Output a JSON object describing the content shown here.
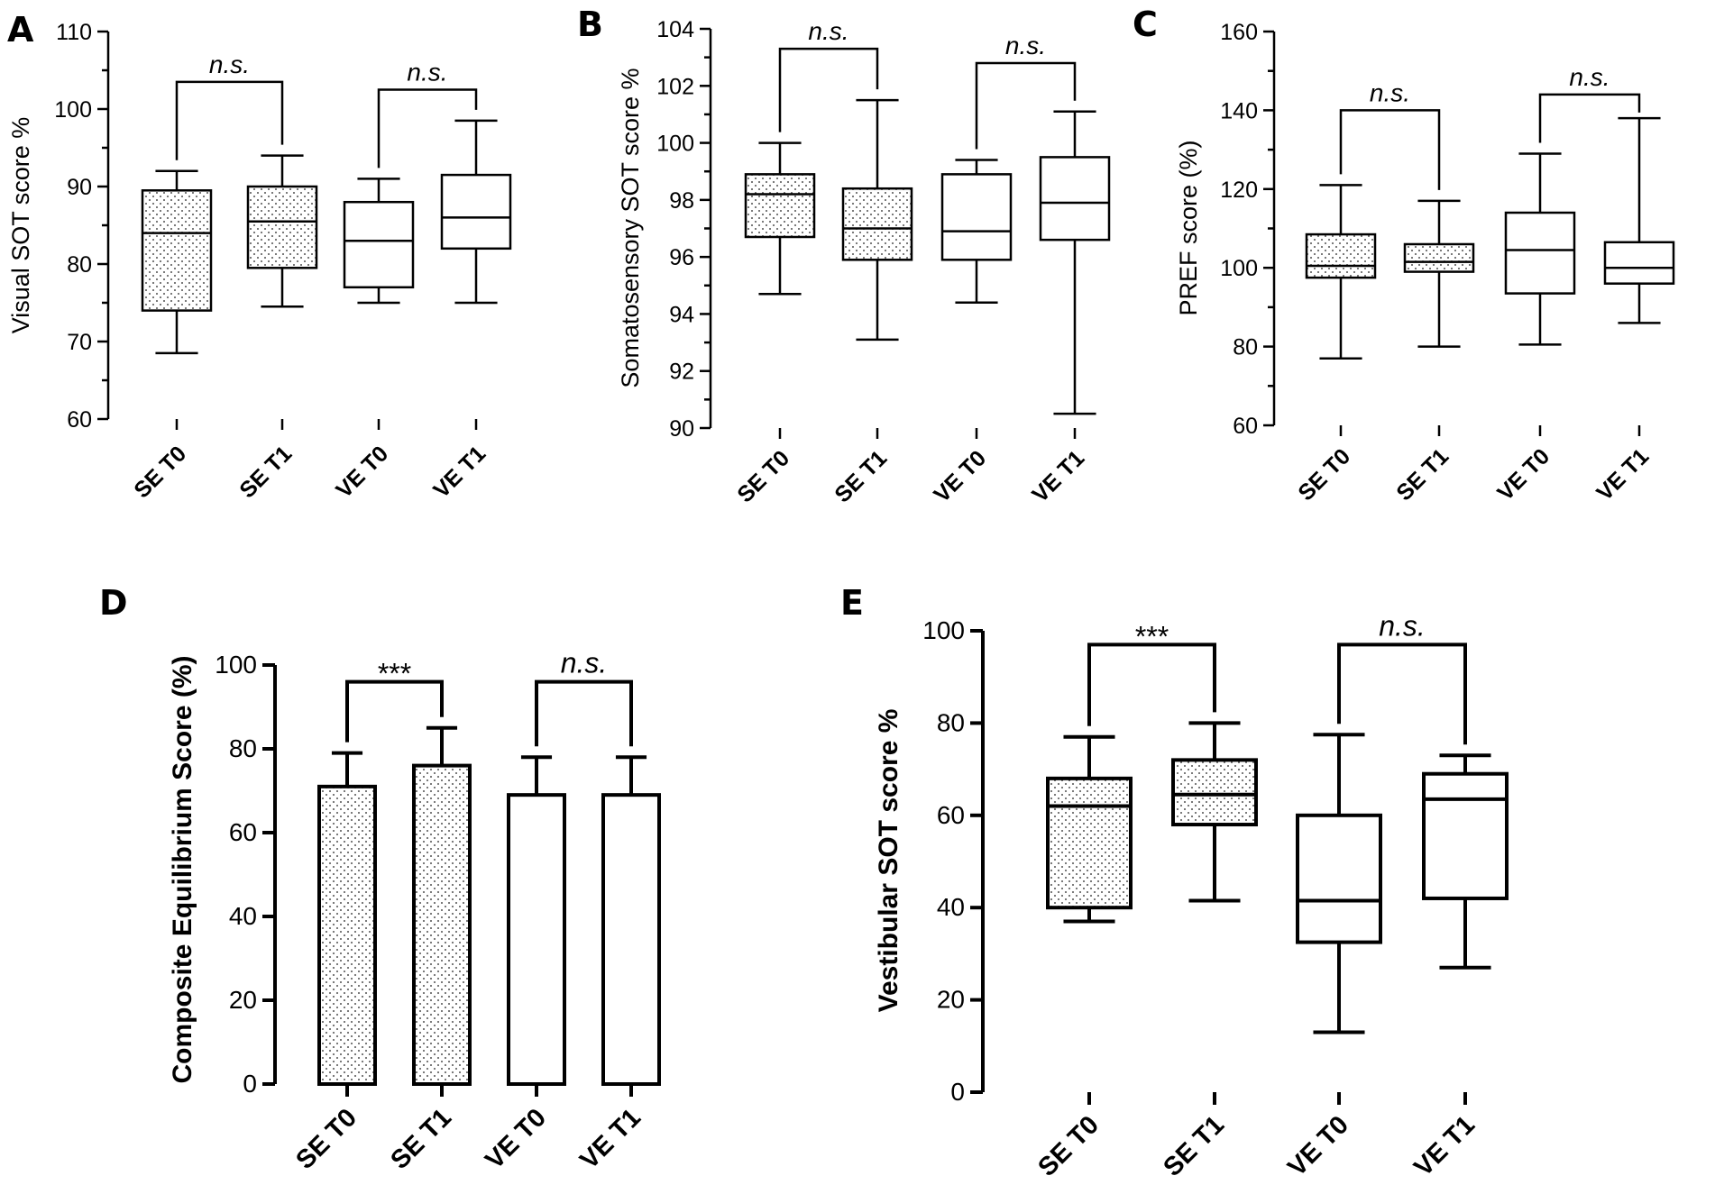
{
  "colors": {
    "ink": "#000000",
    "background": "#ffffff",
    "dot": "#555555"
  },
  "chart_data": [
    {
      "panel": "A",
      "type": "box",
      "ylabel": "Visual SOT score %",
      "ylim": [
        60,
        110
      ],
      "yticks": [
        60,
        70,
        80,
        90,
        100,
        110
      ],
      "categories": [
        "SE T0",
        "SE T1",
        "VE T0",
        "VE T1"
      ],
      "boxes": [
        {
          "min": 68.5,
          "q1": 74,
          "median": 84,
          "q3": 89.5,
          "max": 92,
          "pattern": "dotted"
        },
        {
          "min": 74.5,
          "q1": 79.5,
          "median": 85.5,
          "q3": 90,
          "max": 94,
          "pattern": "dotted"
        },
        {
          "min": 75,
          "q1": 77,
          "median": 83,
          "q3": 88,
          "max": 91,
          "pattern": "open"
        },
        {
          "min": 75,
          "q1": 82,
          "median": 86,
          "q3": 91.5,
          "max": 98.5,
          "pattern": "open"
        }
      ],
      "comparisons": [
        {
          "pair": [
            0,
            1
          ],
          "label": "n.s.",
          "level": 103.5
        },
        {
          "pair": [
            2,
            3
          ],
          "label": "n.s.",
          "level": 102.5
        }
      ]
    },
    {
      "panel": "B",
      "type": "box",
      "ylabel": "Somatosensory SOT score %",
      "ylim": [
        90,
        104
      ],
      "yticks": [
        90,
        92,
        94,
        96,
        98,
        100,
        102,
        104
      ],
      "categories": [
        "SE T0",
        "SE T1",
        "VE T0",
        "VE T1"
      ],
      "boxes": [
        {
          "min": 94.7,
          "q1": 96.7,
          "median": 98.2,
          "q3": 98.9,
          "max": 100,
          "pattern": "dotted"
        },
        {
          "min": 93.1,
          "q1": 95.9,
          "median": 97,
          "q3": 98.4,
          "max": 101.5,
          "pattern": "dotted"
        },
        {
          "min": 94.4,
          "q1": 95.9,
          "median": 96.9,
          "q3": 98.9,
          "max": 99.4,
          "pattern": "open"
        },
        {
          "min": 90.5,
          "q1": 96.6,
          "median": 97.9,
          "q3": 99.5,
          "max": 101.1,
          "pattern": "open"
        }
      ],
      "comparisons": [
        {
          "pair": [
            0,
            1
          ],
          "label": "n.s.",
          "level": 103.3
        },
        {
          "pair": [
            2,
            3
          ],
          "label": "n.s.",
          "level": 102.8
        }
      ]
    },
    {
      "panel": "C",
      "type": "box",
      "ylabel": "PREF score (%)",
      "ylim": [
        60,
        160
      ],
      "yticks": [
        60,
        80,
        100,
        120,
        140,
        160
      ],
      "categories": [
        "SE T0",
        "SE T1",
        "VE T0",
        "VE T1"
      ],
      "boxes": [
        {
          "min": 77,
          "q1": 97.5,
          "median": 100.5,
          "q3": 108.5,
          "max": 121,
          "pattern": "dotted"
        },
        {
          "min": 80,
          "q1": 99,
          "median": 101.5,
          "q3": 106,
          "max": 117,
          "pattern": "dotted"
        },
        {
          "min": 80.5,
          "q1": 93.5,
          "median": 104.5,
          "q3": 114,
          "max": 129,
          "pattern": "open"
        },
        {
          "min": 86,
          "q1": 96,
          "median": 100,
          "q3": 106.5,
          "max": 138,
          "pattern": "open"
        }
      ],
      "comparisons": [
        {
          "pair": [
            0,
            1
          ],
          "label": "n.s.",
          "level": 140
        },
        {
          "pair": [
            2,
            3
          ],
          "label": "n.s.",
          "level": 144
        }
      ]
    },
    {
      "panel": "D",
      "type": "bar",
      "ylabel": "Composite Equilibrium Score (%)",
      "ylim": [
        0,
        100
      ],
      "yticks": [
        0,
        20,
        40,
        60,
        80,
        100
      ],
      "categories": [
        "SE T0",
        "SE T1",
        "VE T0",
        "VE T1"
      ],
      "values": [
        71,
        76,
        69,
        69
      ],
      "errors": [
        8,
        9,
        9,
        9
      ],
      "patterns": [
        "dotted",
        "dotted",
        "open",
        "open"
      ],
      "comparisons": [
        {
          "pair": [
            0,
            1
          ],
          "label": "***",
          "level": 96
        },
        {
          "pair": [
            2,
            3
          ],
          "label": "n.s.",
          "level": 96
        }
      ]
    },
    {
      "panel": "E",
      "type": "box",
      "ylabel": "Vestibular SOT score %",
      "ylim": [
        0,
        100
      ],
      "yticks": [
        0,
        20,
        40,
        60,
        80,
        100
      ],
      "categories": [
        "SE T0",
        "SE T1",
        "VE T0",
        "VE T1"
      ],
      "boxes": [
        {
          "min": 37,
          "q1": 40,
          "median": 62,
          "q3": 68,
          "max": 77,
          "pattern": "dotted"
        },
        {
          "min": 41.5,
          "q1": 58,
          "median": 64.5,
          "q3": 72,
          "max": 80,
          "pattern": "dotted"
        },
        {
          "min": 13,
          "q1": 32.5,
          "median": 41.5,
          "q3": 60,
          "max": 77.5,
          "pattern": "open"
        },
        {
          "min": 27,
          "q1": 42,
          "median": 63.5,
          "q3": 69,
          "max": 73,
          "pattern": "open"
        }
      ],
      "comparisons": [
        {
          "pair": [
            0,
            1
          ],
          "label": "***",
          "level": 97
        },
        {
          "pair": [
            2,
            3
          ],
          "label": "n.s.",
          "level": 97
        }
      ]
    }
  ]
}
